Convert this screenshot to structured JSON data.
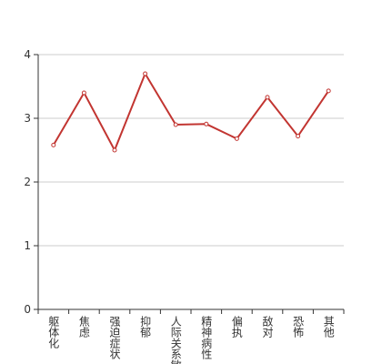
{
  "chart_data": {
    "type": "line",
    "categories": [
      "躯体化",
      "焦虑",
      "强迫症状",
      "抑郁",
      "人际关系敏感",
      "精神病性",
      "偏执",
      "敌对",
      "恐怖",
      "其他"
    ],
    "series": [
      {
        "color": "#c23531",
        "values": [
          2.58,
          3.4,
          2.5,
          3.7,
          2.9,
          2.91,
          2.68,
          3.33,
          2.72,
          3.43
        ]
      }
    ],
    "ylim": [
      0,
      4
    ],
    "yticks": [
      0,
      1,
      2,
      3,
      4
    ],
    "grid": true
  }
}
